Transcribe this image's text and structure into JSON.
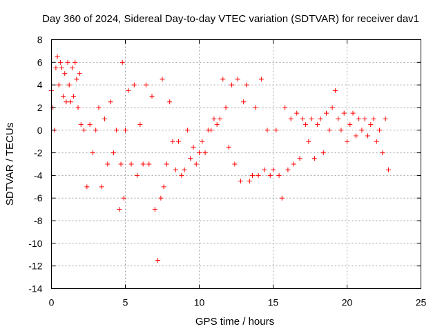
{
  "chart_data": {
    "type": "scatter",
    "title": "Day 360 of 2024, Sidereal Day-to-day VTEC variation (SDTVAR) for receiver dav1",
    "xlabel": "GPS time / hours",
    "ylabel": "SDTVAR / TECUs",
    "xlim": [
      0,
      25
    ],
    "ylim": [
      -14,
      8
    ],
    "xticks": [
      0,
      5,
      10,
      15,
      20,
      25
    ],
    "yticks": [
      -14,
      -12,
      -10,
      -8,
      -6,
      -4,
      -2,
      0,
      2,
      4,
      6,
      8
    ],
    "grid": true,
    "marker": "+",
    "color": "#ff0000",
    "series": [
      {
        "name": "dav1",
        "x": [
          0.0,
          0.1,
          0.2,
          0.3,
          0.4,
          0.5,
          0.6,
          0.7,
          0.8,
          0.9,
          1.0,
          1.1,
          1.2,
          1.3,
          1.4,
          1.5,
          1.6,
          1.7,
          1.8,
          1.9,
          2.0,
          2.2,
          2.4,
          2.6,
          2.8,
          3.0,
          3.2,
          3.4,
          3.6,
          3.8,
          4.0,
          4.2,
          4.4,
          4.6,
          4.7,
          4.8,
          4.9,
          5.0,
          5.2,
          5.4,
          5.6,
          5.8,
          6.0,
          6.2,
          6.4,
          6.6,
          6.8,
          7.0,
          7.2,
          7.4,
          7.5,
          7.6,
          7.8,
          8.0,
          8.2,
          8.4,
          8.6,
          8.8,
          9.0,
          9.2,
          9.4,
          9.6,
          9.8,
          10.0,
          10.2,
          10.4,
          10.6,
          10.8,
          11.0,
          11.2,
          11.4,
          11.6,
          11.8,
          12.0,
          12.2,
          12.4,
          12.6,
          12.8,
          13.0,
          13.2,
          13.4,
          13.6,
          13.8,
          14.0,
          14.2,
          14.4,
          14.6,
          14.8,
          15.0,
          15.2,
          15.4,
          15.6,
          15.8,
          16.0,
          16.2,
          16.4,
          16.6,
          16.8,
          17.0,
          17.2,
          17.4,
          17.6,
          17.8,
          18.0,
          18.2,
          18.4,
          18.6,
          18.8,
          19.0,
          19.2,
          19.4,
          19.6,
          19.8,
          20.0,
          20.2,
          20.4,
          20.6,
          20.8,
          21.0,
          21.2,
          21.4,
          21.6,
          21.8,
          22.0,
          22.2,
          22.4,
          22.6,
          22.8
        ],
        "y": [
          3.5,
          2.0,
          0.0,
          5.5,
          6.5,
          4.0,
          6.0,
          5.5,
          3.0,
          5.0,
          2.5,
          6.0,
          4.0,
          2.5,
          5.5,
          3.0,
          6.0,
          4.5,
          2.0,
          5.0,
          0.5,
          0.0,
          -5.0,
          0.5,
          -2.0,
          0.0,
          2.0,
          -5.0,
          1.0,
          -3.0,
          2.5,
          -2.0,
          0.0,
          -7.0,
          -3.0,
          6.0,
          -6.0,
          0.0,
          3.5,
          -3.0,
          4.0,
          -4.0,
          0.5,
          -3.0,
          4.0,
          -3.0,
          3.0,
          -7.0,
          -11.5,
          -6.0,
          4.5,
          -5.0,
          -3.0,
          2.5,
          -1.0,
          -3.5,
          -1.0,
          -4.0,
          -3.5,
          0.0,
          -2.5,
          -1.5,
          -3.0,
          -2.0,
          -1.0,
          -2.0,
          0.0,
          0.0,
          1.0,
          0.5,
          1.0,
          4.5,
          2.0,
          -1.5,
          4.0,
          -3.0,
          4.5,
          -4.5,
          2.5,
          4.0,
          -4.5,
          -4.0,
          2.0,
          -4.0,
          4.5,
          -3.5,
          0.0,
          -4.0,
          -3.5,
          0.0,
          -4.0,
          -6.0,
          2.0,
          -3.5,
          1.0,
          -3.0,
          1.5,
          -2.5,
          1.0,
          0.5,
          -1.0,
          1.0,
          -2.5,
          0.5,
          1.0,
          -2.0,
          1.5,
          0.0,
          2.0,
          3.5,
          1.0,
          0.0,
          1.5,
          -1.0,
          0.5,
          1.5,
          -0.5,
          1.0,
          0.0,
          1.0,
          -0.5,
          0.5,
          1.0,
          -1.0,
          0.0,
          -2.0,
          1.0,
          -3.5
        ]
      }
    ]
  }
}
